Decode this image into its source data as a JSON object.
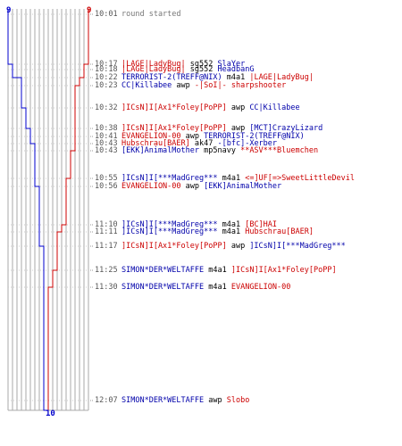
{
  "colors": {
    "blue": "#0000cc",
    "red": "#cc0000",
    "grid": "#aaaaaa"
  },
  "scores": {
    "blue_start": "9",
    "red_start": "9",
    "bottom": "10"
  },
  "events": [
    {
      "time": "10:01",
      "text": "round started",
      "killer": "",
      "weapon": "",
      "victim": "",
      "kc": "gray",
      "vc": "gray"
    },
    {
      "time": "10:17",
      "killer": "|LAGE|LadyBug|",
      "weapon": "sg552",
      "victim": "SlaYer",
      "kc": "red",
      "vc": "blue"
    },
    {
      "time": "10:18",
      "killer": "|LAGE|LadyBug|",
      "weapon": "sg552",
      "victim": "HeadbanG",
      "kc": "red",
      "vc": "blue"
    },
    {
      "time": "10:22",
      "killer": "TERRORIST-2(TREFF@NIX)",
      "weapon": "m4a1",
      "victim": "|LAGE|LadyBug|",
      "kc": "blue",
      "vc": "red"
    },
    {
      "time": "10:23",
      "killer": "CC|Killabee",
      "weapon": "awp",
      "victim": "-|SoI|- sharpshooter",
      "kc": "blue",
      "vc": "red"
    },
    {
      "time": "10:32",
      "killer": "]ICsN]I[Ax1*Foley[PoPP]",
      "weapon": "awp",
      "victim": "CC|Killabee",
      "kc": "red",
      "vc": "blue"
    },
    {
      "time": "10:38",
      "killer": "]ICsN]I[Ax1*Foley[PoPP]",
      "weapon": "awp",
      "victim": "[MCT]CrazyLizard",
      "kc": "red",
      "vc": "blue"
    },
    {
      "time": "10:41",
      "killer": "EVANGELION-00",
      "weapon": "awp",
      "victim": "TERRORIST-2(TREFF@NIX)",
      "kc": "red",
      "vc": "blue"
    },
    {
      "time": "10:43",
      "killer": "Hubschrau[BAER]",
      "weapon": "ak47",
      "victim": "-[bfc]-Xerber",
      "kc": "red",
      "vc": "blue"
    },
    {
      "time": "10:43",
      "killer": "[EKK]AnimalMother",
      "weapon": "mp5navy",
      "victim": "**ASV***Bluemchen",
      "kc": "blue",
      "vc": "red"
    },
    {
      "time": "10:55",
      "killer": "]ICsN]I[***MadGreg***",
      "weapon": "m4a1",
      "victim": "<=]UF[=>SweetLittleDevil",
      "kc": "blue",
      "vc": "red"
    },
    {
      "time": "10:56",
      "killer": "EVANGELION-00",
      "weapon": "awp",
      "victim": "[EKK]AnimalMother",
      "kc": "red",
      "vc": "blue"
    },
    {
      "time": "11:10",
      "killer": "]ICsN]I[***MadGreg***",
      "weapon": "m4a1",
      "victim": "[BC]HAI",
      "kc": "blue",
      "vc": "red"
    },
    {
      "time": "11:11",
      "killer": "]ICsN]I[***MadGreg***",
      "weapon": "m4a1",
      "victim": "Hubschrau[BAER]",
      "kc": "blue",
      "vc": "red"
    },
    {
      "time": "11:17",
      "killer": "]ICsN]I[Ax1*Foley[PoPP]",
      "weapon": "awp",
      "victim": "]ICsN]I[***MadGreg***",
      "kc": "red",
      "vc": "blue"
    },
    {
      "time": "11:25",
      "killer": "SIMON*DER*WELTAFFE",
      "weapon": "m4a1",
      "victim": "]ICsN]I[Ax1*Foley[PoPP]",
      "kc": "blue",
      "vc": "red"
    },
    {
      "time": "11:30",
      "killer": "SIMON*DER*WELTAFFE",
      "weapon": "m4a1",
      "victim": "EVANGELION-00",
      "kc": "blue",
      "vc": "red"
    },
    {
      "time": "12:07",
      "killer": "SIMON*DER*WELTAFFE",
      "weapon": "awp",
      "victim": "Slobo",
      "kc": "blue",
      "vc": "red"
    }
  ]
}
